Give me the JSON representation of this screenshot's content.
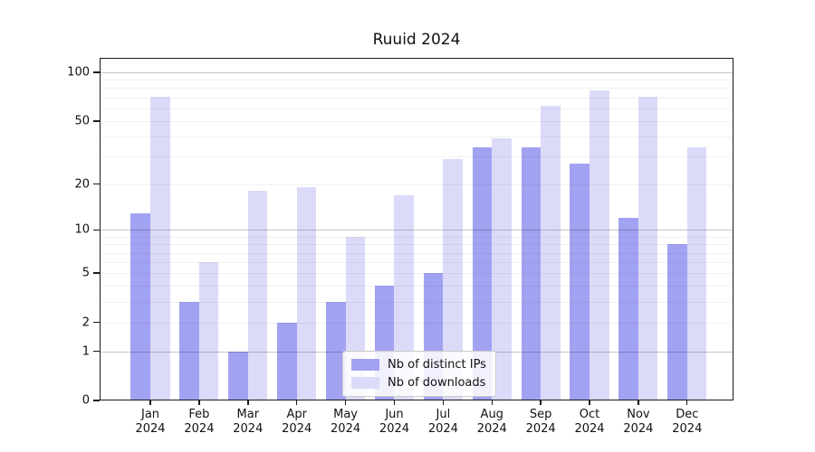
{
  "chart_data": {
    "type": "bar",
    "title": "Ruuid 2024",
    "categories": [
      "Jan 2024",
      "Feb 2024",
      "Mar 2024",
      "Apr 2024",
      "May 2024",
      "Jun 2024",
      "Jul 2024",
      "Aug 2024",
      "Sep 2024",
      "Oct 2024",
      "Nov 2024",
      "Dec 2024"
    ],
    "series": [
      {
        "name": "Nb of distinct IPs",
        "color": "#a2a2f2",
        "values": [
          13,
          3,
          1,
          2,
          3,
          4,
          5,
          34,
          34,
          27,
          12,
          8
        ]
      },
      {
        "name": "Nb of downloads",
        "color": "#dbdbf9",
        "values": [
          71,
          6,
          18,
          19,
          9,
          17,
          29,
          39,
          62,
          77,
          71,
          34
        ]
      }
    ],
    "xlabel": "",
    "ylabel": "",
    "yscale": "log1p",
    "ylim": [
      0,
      123
    ],
    "yticks": [
      0,
      1,
      2,
      5,
      10,
      20,
      50,
      100
    ],
    "ytick_labels": [
      "0",
      "1",
      "2",
      "5",
      "10",
      "20",
      "50",
      "100"
    ],
    "grid": {
      "orientation": "horizontal",
      "major_values": [
        1,
        10,
        100
      ],
      "minor_values": [
        2,
        3,
        4,
        5,
        6,
        7,
        8,
        9,
        20,
        30,
        40,
        50,
        60,
        70,
        80,
        90
      ]
    },
    "legend": {
      "position": "lower center",
      "entries": [
        "Nb of distinct IPs",
        "Nb of downloads"
      ]
    }
  },
  "colors": {
    "background": "#ffffff",
    "bar_distinct_ips": "#a2a2f2",
    "bar_downloads": "#dbdbf9",
    "axis": "#1a1a1a",
    "grid_major": "#c7c7c7",
    "grid_minor": "#f1f1f1",
    "legend_border": "#cccccc",
    "text": "#111111"
  }
}
